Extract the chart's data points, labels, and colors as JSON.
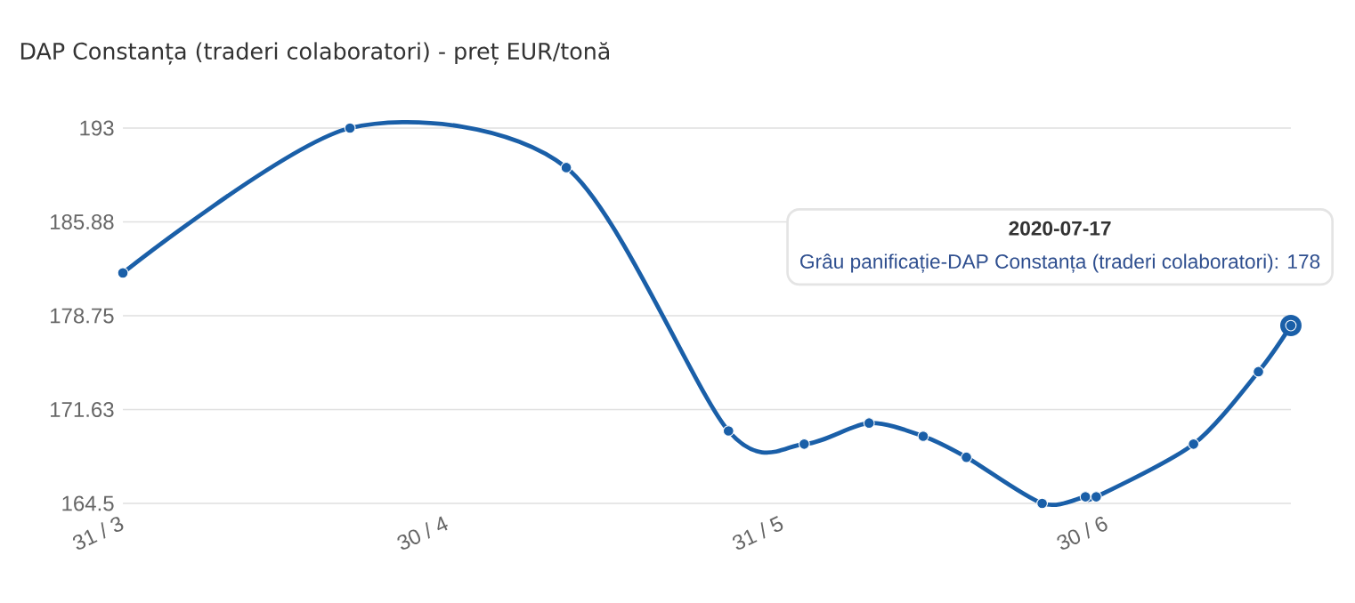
{
  "chart_data": {
    "type": "line",
    "title": "DAP Constanța (traderi colaboratori) - preț EUR/tonă",
    "x": [
      "2020-03-31",
      "2020-04-21",
      "2020-05-11",
      "2020-05-26",
      "2020-06-02",
      "2020-06-08",
      "2020-06-13",
      "2020-06-17",
      "2020-06-24",
      "2020-06-28",
      "2020-06-29",
      "2020-07-08",
      "2020-07-14",
      "2020-07-17"
    ],
    "series": [
      {
        "color": "#1a5fa8",
        "values": [
          182,
          193,
          190,
          170,
          169,
          170.6,
          169.6,
          168,
          164.5,
          165,
          165,
          169,
          174.5,
          178
        ]
      }
    ],
    "xlim": [
      "2020-03-31",
      "2020-07-17"
    ],
    "xticks": [
      {
        "value": "2020-03-31",
        "label": "31 / 3"
      },
      {
        "value": "2020-04-30",
        "label": "30 / 4"
      },
      {
        "value": "2020-05-31",
        "label": "31 / 5"
      },
      {
        "value": "2020-06-30",
        "label": "30 / 6"
      }
    ],
    "ylim": [
      164.5,
      193
    ],
    "yticks": [
      164.5,
      {
        "value": 171.625,
        "label": "171.63"
      },
      178.75,
      {
        "value": 185.875,
        "label": "185.88"
      },
      193
    ],
    "grid": "y",
    "marker": "circle",
    "line_style": "solid",
    "annotations": [
      "2020-07-17",
      "Grâu panificație-DAP Constanța (traderi colaboratori): 178"
    ]
  }
}
